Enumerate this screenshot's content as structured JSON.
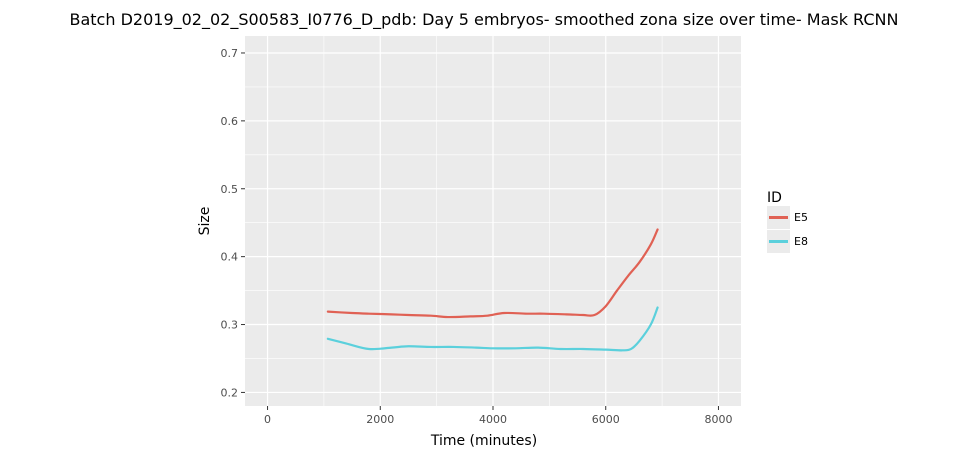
{
  "chart_data": {
    "type": "line",
    "title": "Batch D2019_02_02_S00583_I0776_D_pdb: Day 5 embryos- smoothed zona size over time- Mask RCNN",
    "xlabel": "Time (minutes)",
    "ylabel": "Size",
    "xlim": [
      -400,
      8400
    ],
    "ylim": [
      0.18,
      0.725
    ],
    "x_ticks": [
      0,
      2000,
      4000,
      6000,
      8000
    ],
    "x_tick_labels": [
      "0",
      "2000",
      "4000",
      "6000",
      "8000"
    ],
    "y_ticks": [
      0.2,
      0.3,
      0.4,
      0.5,
      0.6,
      0.7
    ],
    "y_tick_labels": [
      "0.2",
      "0.3",
      "0.4",
      "0.5",
      "0.6",
      "0.7"
    ],
    "grid": true,
    "legend": {
      "title": "ID",
      "position": "right"
    },
    "series": [
      {
        "name": "E5",
        "color": "#e06154",
        "x": [
          1070,
          1500,
          1800,
          2200,
          2500,
          2900,
          3200,
          3600,
          3900,
          4200,
          4600,
          4900,
          5300,
          5600,
          5800,
          6000,
          6200,
          6400,
          6600,
          6800,
          6920
        ],
        "y": [
          0.319,
          0.317,
          0.316,
          0.315,
          0.314,
          0.313,
          0.311,
          0.312,
          0.313,
          0.317,
          0.316,
          0.316,
          0.315,
          0.314,
          0.314,
          0.327,
          0.35,
          0.372,
          0.392,
          0.418,
          0.44
        ]
      },
      {
        "name": "E8",
        "color": "#5bd0dc",
        "x": [
          1070,
          1400,
          1800,
          2200,
          2500,
          2900,
          3300,
          3700,
          4000,
          4400,
          4800,
          5200,
          5600,
          6000,
          6300,
          6450,
          6600,
          6800,
          6920
        ],
        "y": [
          0.279,
          0.272,
          0.264,
          0.266,
          0.268,
          0.267,
          0.267,
          0.266,
          0.265,
          0.265,
          0.266,
          0.264,
          0.264,
          0.263,
          0.262,
          0.264,
          0.276,
          0.3,
          0.325
        ]
      }
    ]
  }
}
